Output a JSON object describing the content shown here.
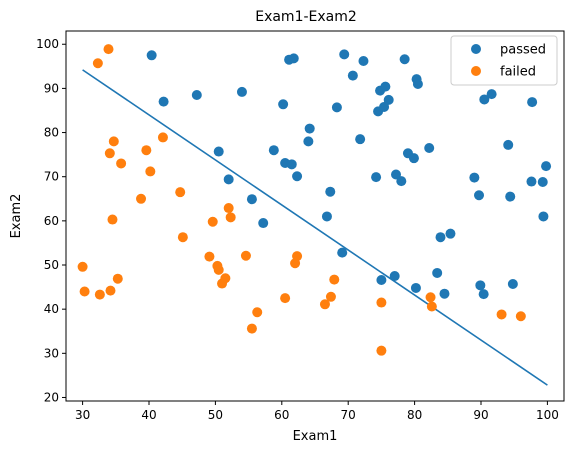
{
  "chart_data": {
    "type": "scatter",
    "title": "Exam1-Exam2",
    "xlabel": "Exam1",
    "ylabel": "Exam2",
    "xlim": [
      27.5,
      102.5
    ],
    "ylim": [
      19.2,
      103
    ],
    "xticks": [
      30,
      40,
      50,
      60,
      70,
      80,
      90,
      100
    ],
    "yticks": [
      20,
      30,
      40,
      50,
      60,
      70,
      80,
      90,
      100
    ],
    "grid": false,
    "legend_position": "top-right",
    "series": [
      {
        "name": "passed",
        "color": "#1f77b4",
        "points": [
          [
            40.4,
            97.5
          ],
          [
            42.2,
            87.0
          ],
          [
            47.2,
            88.5
          ],
          [
            50.5,
            75.7
          ],
          [
            52.0,
            69.4
          ],
          [
            54.0,
            89.2
          ],
          [
            55.5,
            64.9
          ],
          [
            57.2,
            59.5
          ],
          [
            58.8,
            76.0
          ],
          [
            60.2,
            86.4
          ],
          [
            60.5,
            73.1
          ],
          [
            61.1,
            96.5
          ],
          [
            61.5,
            72.8
          ],
          [
            61.8,
            96.8
          ],
          [
            62.3,
            70.1
          ],
          [
            64.0,
            78.0
          ],
          [
            64.2,
            80.9
          ],
          [
            66.8,
            61.0
          ],
          [
            67.3,
            66.6
          ],
          [
            68.3,
            85.7
          ],
          [
            69.1,
            52.8
          ],
          [
            69.4,
            97.7
          ],
          [
            70.7,
            92.9
          ],
          [
            71.8,
            78.5
          ],
          [
            72.3,
            96.2
          ],
          [
            74.2,
            69.9
          ],
          [
            74.5,
            84.8
          ],
          [
            74.8,
            89.5
          ],
          [
            75.0,
            46.6
          ],
          [
            75.4,
            85.8
          ],
          [
            75.6,
            90.4
          ],
          [
            76.1,
            87.4
          ],
          [
            77.0,
            47.5
          ],
          [
            77.2,
            70.5
          ],
          [
            78.0,
            69.0
          ],
          [
            78.5,
            96.6
          ],
          [
            79.0,
            75.3
          ],
          [
            79.9,
            74.2
          ],
          [
            80.3,
            92.1
          ],
          [
            80.2,
            44.8
          ],
          [
            80.5,
            91.0
          ],
          [
            82.2,
            76.5
          ],
          [
            83.4,
            48.2
          ],
          [
            83.9,
            56.3
          ],
          [
            84.5,
            43.5
          ],
          [
            85.4,
            57.1
          ],
          [
            89.0,
            69.8
          ],
          [
            89.7,
            65.8
          ],
          [
            89.9,
            45.4
          ],
          [
            90.4,
            43.4
          ],
          [
            90.5,
            87.5
          ],
          [
            91.6,
            88.7
          ],
          [
            94.1,
            77.2
          ],
          [
            94.4,
            65.5
          ],
          [
            94.8,
            45.7
          ],
          [
            97.6,
            68.9
          ],
          [
            97.7,
            86.9
          ],
          [
            99.3,
            68.8
          ],
          [
            99.4,
            61.0
          ],
          [
            99.8,
            72.4
          ]
        ]
      },
      {
        "name": "failed",
        "color": "#ff7f0e",
        "points": [
          [
            30.0,
            49.6
          ],
          [
            30.3,
            44.0
          ],
          [
            32.3,
            95.7
          ],
          [
            32.6,
            43.3
          ],
          [
            33.9,
            98.9
          ],
          [
            34.1,
            75.3
          ],
          [
            34.2,
            44.2
          ],
          [
            34.5,
            60.3
          ],
          [
            34.7,
            78.0
          ],
          [
            35.3,
            46.9
          ],
          [
            35.8,
            73.0
          ],
          [
            38.8,
            65.0
          ],
          [
            39.6,
            76.0
          ],
          [
            40.2,
            71.2
          ],
          [
            42.1,
            78.9
          ],
          [
            44.7,
            66.5
          ],
          [
            45.1,
            56.3
          ],
          [
            49.1,
            51.9
          ],
          [
            49.6,
            59.8
          ],
          [
            50.3,
            49.8
          ],
          [
            50.5,
            48.9
          ],
          [
            51.0,
            45.8
          ],
          [
            51.5,
            47.0
          ],
          [
            52.0,
            62.9
          ],
          [
            52.3,
            60.8
          ],
          [
            54.6,
            52.1
          ],
          [
            55.5,
            35.6
          ],
          [
            56.3,
            39.3
          ],
          [
            60.5,
            42.5
          ],
          [
            62.0,
            50.4
          ],
          [
            62.3,
            52.0
          ],
          [
            66.5,
            41.1
          ],
          [
            67.4,
            42.8
          ],
          [
            67.9,
            46.7
          ],
          [
            75.0,
            30.6
          ],
          [
            75.0,
            41.5
          ],
          [
            82.4,
            42.7
          ],
          [
            82.6,
            40.6
          ],
          [
            93.1,
            38.8
          ],
          [
            96.0,
            38.4
          ]
        ]
      }
    ],
    "decision_boundary": {
      "color": "#1f77b4",
      "x": [
        30,
        100
      ],
      "y": [
        94.2,
        22.8
      ]
    }
  }
}
